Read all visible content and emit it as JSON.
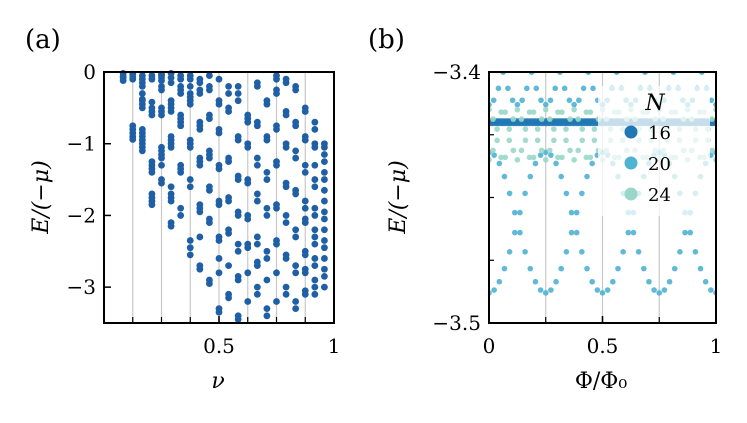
{
  "chart_data": [
    {
      "panel": "(a)",
      "type": "scatter",
      "xlabel": "ν",
      "ylabel": "E/(−μ)",
      "xlim": [
        0,
        1
      ],
      "ylim": [
        -3.5,
        0
      ],
      "xticks": [
        {
          "value": 0.5,
          "label": "0.5"
        },
        {
          "value": 1,
          "label": "1"
        }
      ],
      "yticks": [
        {
          "value": 0,
          "label": "0"
        },
        {
          "value": -1,
          "label": "−1"
        },
        {
          "value": -2,
          "label": "−2"
        },
        {
          "value": -3,
          "label": "−3"
        }
      ],
      "vlines": [
        0.125,
        0.25,
        0.375,
        0.5,
        0.625,
        0.75,
        0.875
      ],
      "grid": false,
      "marker_color": "#1f5fa5",
      "series": [
        {
          "x": [
            0.0833,
            0.0833,
            0.0833,
            0.0833,
            0.125,
            0.125,
            0.125,
            0.125,
            0.125,
            0.125,
            0.125,
            0.125,
            0.1667,
            0.1667,
            0.1667,
            0.1667,
            0.1667,
            0.1667,
            0.1667,
            0.1667,
            0.1667,
            0.1667,
            0.1667,
            0.1667,
            0.1667,
            0.1667,
            0.1667,
            0.1667
          ],
          "y": [
            -0.02,
            -0.06,
            -0.08,
            -0.12,
            -0.03,
            -0.07,
            -0.1,
            -0.75,
            -0.8,
            -0.85,
            -0.9,
            -0.94,
            -0.05,
            -0.1,
            -0.15,
            -0.2,
            -0.3,
            -0.38,
            -0.4,
            -0.45,
            -0.5,
            -0.8,
            -0.85,
            -0.9,
            -0.95,
            -1.0,
            -1.05,
            -1.1
          ]
        },
        {
          "x": [
            0.2083,
            0.2083,
            0.2083,
            0.2083,
            0.2083,
            0.2083,
            0.2083,
            0.2083,
            0.2083,
            0.2083,
            0.2083,
            0.2083,
            0.2083,
            0.2083,
            0.25,
            0.25,
            0.25,
            0.25,
            0.25,
            0.25,
            0.25,
            0.25,
            0.25,
            0.25,
            0.25,
            0.25,
            0.25,
            0.25,
            0.25,
            0.25
          ],
          "y": [
            -0.05,
            -0.1,
            -0.42,
            -0.5,
            -0.55,
            -0.6,
            -1.25,
            -1.3,
            -1.35,
            -1.4,
            -1.7,
            -1.75,
            -1.8,
            -1.85,
            -0.03,
            -0.05,
            -0.08,
            -0.12,
            -0.2,
            -0.25,
            -0.5,
            -0.55,
            -0.6,
            -1.05,
            -1.1,
            -1.15,
            -1.2,
            -1.3,
            -1.5,
            -1.55
          ]
        },
        {
          "x": [
            0.2917,
            0.2917,
            0.2917,
            0.2917,
            0.2917,
            0.2917,
            0.2917,
            0.2917,
            0.2917,
            0.2917,
            0.2917,
            0.2917,
            0.2917,
            0.2917,
            0.2917,
            0.2917,
            0.2917,
            0.3333,
            0.3333,
            0.3333,
            0.3333,
            0.3333,
            0.3333,
            0.3333,
            0.3333,
            0.3333,
            0.3333,
            0.3333,
            0.3333,
            0.3333,
            0.3333
          ],
          "y": [
            -0.02,
            -0.08,
            -0.15,
            -0.4,
            -0.45,
            -0.5,
            -0.55,
            -0.9,
            -0.95,
            -1.0,
            -1.05,
            -1.6,
            -1.7,
            -1.75,
            -1.8,
            -2.1,
            -2.15,
            -0.05,
            -0.1,
            -0.2,
            -0.25,
            -0.3,
            -0.6,
            -0.65,
            -0.7,
            -0.75,
            -1.3,
            -1.35,
            -1.4,
            -1.9,
            -2.0
          ]
        },
        {
          "x": [
            0.375,
            0.375,
            0.375,
            0.375,
            0.375,
            0.375,
            0.375,
            0.375,
            0.375,
            0.375,
            0.375,
            0.375,
            0.375,
            0.375,
            0.375,
            0.4167,
            0.4167,
            0.4167,
            0.4167,
            0.4167,
            0.4167,
            0.4167,
            0.4167,
            0.4167,
            0.4167,
            0.4167,
            0.4167,
            0.4167,
            0.4167,
            0.4167,
            0.4167
          ],
          "y": [
            -0.05,
            -0.1,
            -0.2,
            -0.3,
            -0.35,
            -0.4,
            -0.45,
            -0.95,
            -1.0,
            -1.05,
            -1.5,
            -1.6,
            -2.35,
            -2.45,
            -2.55,
            -0.1,
            -0.15,
            -0.25,
            -0.3,
            -0.7,
            -0.75,
            -0.8,
            -1.2,
            -1.25,
            -1.3,
            -1.85,
            -1.9,
            -1.95,
            -2.3,
            -2.7,
            -2.75
          ]
        },
        {
          "x": [
            0.4583,
            0.4583,
            0.4583,
            0.4583,
            0.4583,
            0.4583,
            0.4583,
            0.4583,
            0.4583,
            0.4583,
            0.4583,
            0.4583,
            0.4583,
            0.4583,
            0.5,
            0.5,
            0.5,
            0.5,
            0.5,
            0.5,
            0.5,
            0.5,
            0.5,
            0.5,
            0.5,
            0.5,
            0.5,
            0.5,
            0.5
          ],
          "y": [
            -0.05,
            -0.2,
            -0.25,
            -0.6,
            -0.65,
            -1.1,
            -1.15,
            -1.2,
            -1.6,
            -1.65,
            -2.05,
            -2.1,
            -2.9,
            -2.95,
            -0.1,
            -0.4,
            -0.45,
            -0.8,
            -0.85,
            -1.3,
            -1.35,
            -1.8,
            -1.85,
            -2.3,
            -2.35,
            -2.6,
            -2.8,
            -3.3,
            -3.35
          ]
        },
        {
          "x": [
            0.5417,
            0.5417,
            0.5417,
            0.5417,
            0.5417,
            0.5417,
            0.5417,
            0.5417,
            0.5417,
            0.5417,
            0.5417,
            0.5417,
            0.5417,
            0.5833,
            0.5833,
            0.5833,
            0.5833,
            0.5833,
            0.5833,
            0.5833,
            0.5833,
            0.5833,
            0.5833,
            0.5833,
            0.5833,
            0.5833,
            0.5833,
            0.5833
          ],
          "y": [
            -0.2,
            -0.3,
            -0.5,
            -0.55,
            -1.2,
            -1.25,
            -1.75,
            -1.8,
            -2.2,
            -2.25,
            -2.7,
            -3.1,
            -3.15,
            -0.2,
            -0.3,
            -0.4,
            -0.9,
            -0.95,
            -1.45,
            -1.5,
            -1.95,
            -2.0,
            -2.4,
            -2.5,
            -2.85,
            -2.9,
            -3.4,
            -3.45
          ]
        },
        {
          "x": [
            0.625,
            0.625,
            0.625,
            0.625,
            0.625,
            0.625,
            0.625,
            0.625,
            0.625,
            0.625,
            0.625,
            0.625,
            0.625,
            0.6667,
            0.6667,
            0.6667,
            0.6667,
            0.6667,
            0.6667,
            0.6667,
            0.6667,
            0.6667,
            0.6667,
            0.6667,
            0.6667,
            0.6667,
            0.6667
          ],
          "y": [
            -0.6,
            -0.65,
            -0.7,
            -1.0,
            -1.05,
            -1.5,
            -1.55,
            -2.0,
            -2.05,
            -2.4,
            -2.45,
            -2.8,
            -3.2,
            -0.15,
            -0.2,
            -0.7,
            -0.75,
            -1.2,
            -1.3,
            -1.7,
            -1.8,
            -2.3,
            -2.4,
            -2.65,
            -2.7,
            -3.0,
            -3.1
          ]
        },
        {
          "x": [
            0.7083,
            0.7083,
            0.7083,
            0.7083,
            0.7083,
            0.7083,
            0.7083,
            0.7083,
            0.7083,
            0.7083,
            0.7083,
            0.7083,
            0.7083,
            0.75,
            0.75,
            0.75,
            0.75,
            0.75,
            0.75,
            0.75,
            0.75,
            0.75,
            0.75,
            0.75,
            0.75,
            0.75,
            0.75
          ],
          "y": [
            -0.4,
            -0.45,
            -0.9,
            -0.95,
            -1.4,
            -1.5,
            -1.9,
            -2.0,
            -2.5,
            -2.6,
            -2.9,
            -3.3,
            -3.4,
            -0.05,
            -0.1,
            -0.25,
            -0.3,
            -0.75,
            -0.8,
            -1.25,
            -1.3,
            -1.85,
            -1.9,
            -2.35,
            -2.4,
            -2.8,
            -3.2
          ]
        },
        {
          "x": [
            0.7917,
            0.7917,
            0.7917,
            0.7917,
            0.7917,
            0.7917,
            0.7917,
            0.7917,
            0.7917,
            0.7917,
            0.7917,
            0.7917,
            0.7917,
            0.7917,
            0.8333,
            0.8333,
            0.8333,
            0.8333,
            0.8333,
            0.8333,
            0.8333,
            0.8333,
            0.8333,
            0.8333,
            0.8333,
            0.8333,
            0.8333,
            0.8333
          ],
          "y": [
            -0.1,
            -0.15,
            -0.55,
            -0.6,
            -1.0,
            -1.05,
            -1.55,
            -1.6,
            -2.0,
            -2.1,
            -2.55,
            -2.6,
            -3.0,
            -3.1,
            -0.2,
            -0.25,
            -0.7,
            -0.75,
            -1.1,
            -1.2,
            -1.65,
            -1.7,
            -2.2,
            -2.3,
            -2.7,
            -2.8,
            -3.2,
            -3.3
          ]
        },
        {
          "x": [
            0.875,
            0.875,
            0.875,
            0.875,
            0.875,
            0.875,
            0.875,
            0.875,
            0.875,
            0.875,
            0.875,
            0.875,
            0.875,
            0.875,
            0.875,
            0.875,
            0.9167,
            0.9167,
            0.9167,
            0.9167,
            0.9167,
            0.9167,
            0.9167,
            0.9167,
            0.9167,
            0.9167,
            0.9167,
            0.9167,
            0.9167,
            0.9167,
            0.9167,
            0.9167,
            0.9167
          ],
          "y": [
            -0.5,
            -0.55,
            -0.9,
            -0.95,
            -1.3,
            -1.4,
            -1.8,
            -1.9,
            -2.05,
            -2.1,
            -2.5,
            -2.55,
            -2.75,
            -2.8,
            -3.05,
            -3.1,
            -0.7,
            -0.8,
            -1.0,
            -1.05,
            -1.3,
            -1.5,
            -1.6,
            -1.9,
            -2.0,
            -2.2,
            -2.3,
            -2.4,
            -2.6,
            -2.7,
            -2.9,
            -3.0,
            -3.1
          ]
        },
        {
          "x": [
            0.9583,
            0.9583,
            0.9583,
            0.9583,
            0.9583,
            0.9583,
            0.9583,
            0.9583,
            0.9583,
            0.9583,
            0.9583,
            0.9583,
            0.9583,
            0.9583,
            0.9583,
            0.9583,
            0.9583
          ],
          "y": [
            -1.0,
            -1.05,
            -1.15,
            -1.25,
            -1.4,
            -1.5,
            -1.65,
            -1.8,
            -1.95,
            -2.05,
            -2.2,
            -2.35,
            -2.45,
            -2.6,
            -2.75,
            -2.85,
            -3.0
          ]
        }
      ]
    },
    {
      "panel": "(b)",
      "type": "scatter",
      "xlabel": "Φ/Φ0",
      "ylabel": "E/(−μ)",
      "xlim": [
        0,
        1
      ],
      "ylim": [
        -3.5,
        -3.4
      ],
      "xticks": [
        {
          "value": 0,
          "label": "0"
        },
        {
          "value": 0.5,
          "label": "0.5"
        },
        {
          "value": 1,
          "label": "1"
        }
      ],
      "yticks": [
        {
          "value": -3.4,
          "label": "−3.4"
        },
        {
          "value": -3.5,
          "label": "−3.5"
        }
      ],
      "vlines": [
        0.25,
        0.5,
        0.75
      ],
      "grid": false,
      "legend": {
        "title": "N",
        "placement": "upper right",
        "entries": [
          {
            "label": "16",
            "color": "#1f78b4"
          },
          {
            "label": "20",
            "color": "#4fb3d3"
          },
          {
            "label": "24",
            "color": "#99d8c9"
          }
        ]
      },
      "series": [
        {
          "name": "16",
          "color": "#1f78b4",
          "band": "flat",
          "y_range": [
            -3.4205,
            -3.4195
          ]
        },
        {
          "name": "20",
          "color": "#4fb3d3",
          "band": "arcs",
          "y_center": -3.4,
          "amplitude": 0.013,
          "period": 0.25
        },
        {
          "name": "20",
          "color": "#4fb3d3",
          "band": "arcs",
          "y_center": -3.46,
          "amplitude": 0.028,
          "period": 0.5
        },
        {
          "name": "24",
          "color": "#99d8c9",
          "band": "arcs",
          "y_center": -3.425,
          "amplitude": 0.01,
          "period": 0.125
        }
      ]
    }
  ],
  "panel_labels": {
    "a": "(a)",
    "b": "(b)"
  },
  "ylabel_a": "E/(−μ)",
  "ylabel_b": "E/(−μ)",
  "xlabel_a": "ν",
  "xlabel_b": "Φ/Φ₀"
}
